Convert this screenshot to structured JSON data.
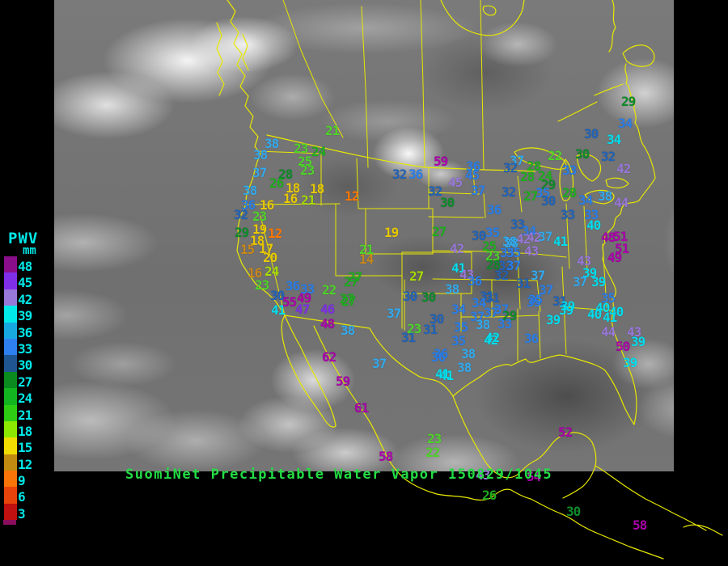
{
  "caption": {
    "text": "SuomiNet Precipitable Water Vapor 150829/1045",
    "color": "#22DD44"
  },
  "colors": {
    "background": "#000000",
    "outline": "#E8E800",
    "legend_label": "#00E8E8"
  },
  "legend": {
    "title": "PWV",
    "unit": "mm",
    "entries": [
      {
        "label": "48",
        "color": "#8A0D8A"
      },
      {
        "label": "45",
        "color": "#7F2FE8"
      },
      {
        "label": "42",
        "color": "#9878D8"
      },
      {
        "label": "39",
        "color": "#00E8E8"
      },
      {
        "label": "36",
        "color": "#18A8E0"
      },
      {
        "label": "33",
        "color": "#2E7FF0"
      },
      {
        "label": "30",
        "color": "#1F5590"
      },
      {
        "label": "27",
        "color": "#0A8A1F"
      },
      {
        "label": "24",
        "color": "#12B41F"
      },
      {
        "label": "21",
        "color": "#2ECC12"
      },
      {
        "label": "18",
        "color": "#8CE800"
      },
      {
        "label": "15",
        "color": "#F0DC00"
      },
      {
        "label": "12",
        "color": "#C08A10"
      },
      {
        "label": "9",
        "color": "#F87408"
      },
      {
        "label": "6",
        "color": "#E8430A"
      },
      {
        "label": "3",
        "color": "#C01010"
      }
    ]
  },
  "palette": {
    "p48": "#AA00AA",
    "v45": "#7F2FE8",
    "v42": "#9878D8",
    "c39": "#00DDEE",
    "b36": "#33AAEE",
    "b33": "#2B7FE8",
    "b30": "#2163B8",
    "g27": "#0E8A2A",
    "g24": "#1FAE1F",
    "g21": "#4FD42A",
    "y18": "#A8DC00",
    "y15": "#E8C800",
    "o12": "#C8881A",
    "o9": "#FF7700"
  },
  "stations": [
    [
      21,
      404,
      157,
      "g21"
    ],
    [
      38,
      329,
      173,
      "b36"
    ],
    [
      23,
      365,
      179,
      "g21"
    ],
    [
      24,
      387,
      183,
      "g24"
    ],
    [
      38,
      315,
      187,
      "b36"
    ],
    [
      25,
      370,
      195,
      "g21"
    ],
    [
      23,
      373,
      206,
      "g21"
    ],
    [
      37,
      314,
      209,
      "b36"
    ],
    [
      28,
      346,
      211,
      "g27"
    ],
    [
      26,
      335,
      222,
      "g24"
    ],
    [
      18,
      355,
      228,
      "y15"
    ],
    [
      18,
      385,
      229,
      "y15"
    ],
    [
      38,
      302,
      231,
      "b36"
    ],
    [
      16,
      352,
      241,
      "y15"
    ],
    [
      21,
      374,
      243,
      "y18"
    ],
    [
      12,
      428,
      238,
      "o9"
    ],
    [
      36,
      300,
      249,
      "b33"
    ],
    [
      16,
      323,
      249,
      "y15"
    ],
    [
      32,
      291,
      261,
      "b30"
    ],
    [
      23,
      314,
      263,
      "g21"
    ],
    [
      29,
      292,
      283,
      "g27"
    ],
    [
      19,
      314,
      279,
      "y15"
    ],
    [
      12,
      333,
      284,
      "o9"
    ],
    [
      18,
      311,
      293,
      "y15"
    ],
    [
      17,
      322,
      303,
      "y15"
    ],
    [
      15,
      299,
      304,
      "o12"
    ],
    [
      20,
      327,
      314,
      "y15"
    ],
    [
      16,
      308,
      333,
      "o12"
    ],
    [
      24,
      329,
      331,
      "y18"
    ],
    [
      23,
      317,
      348,
      "g21"
    ],
    [
      36,
      355,
      349,
      "b33"
    ],
    [
      33,
      373,
      353,
      "b33"
    ],
    [
      22,
      400,
      354,
      "g21"
    ],
    [
      27,
      427,
      344,
      "g24"
    ],
    [
      21,
      446,
      304,
      "g21"
    ],
    [
      14,
      446,
      316,
      "o12"
    ],
    [
      30,
      336,
      361,
      "b30"
    ],
    [
      55,
      351,
      369,
      "p48"
    ],
    [
      49,
      369,
      364,
      "p48"
    ],
    [
      41,
      337,
      379,
      "c39"
    ],
    [
      47,
      367,
      378,
      "v45"
    ],
    [
      46,
      398,
      378,
      "v45"
    ],
    [
      27,
      424,
      368,
      "g24"
    ],
    [
      48,
      398,
      396,
      "p48"
    ],
    [
      38,
      423,
      404,
      "b36"
    ],
    [
      59,
      538,
      195,
      "p48"
    ],
    [
      32,
      487,
      211,
      "b30"
    ],
    [
      36,
      507,
      211,
      "b33"
    ],
    [
      36,
      578,
      201,
      "b33"
    ],
    [
      45,
      556,
      221,
      "v42"
    ],
    [
      45,
      577,
      212,
      "b33"
    ],
    [
      32,
      531,
      232,
      "b30"
    ],
    [
      37,
      584,
      231,
      "b33"
    ],
    [
      30,
      546,
      246,
      "g27"
    ],
    [
      36,
      604,
      255,
      "b33"
    ],
    [
      19,
      477,
      283,
      "y15"
    ],
    [
      27,
      536,
      282,
      "g24"
    ],
    [
      42,
      558,
      303,
      "v42"
    ],
    [
      30,
      585,
      287,
      "b30"
    ],
    [
      35,
      602,
      283,
      "b33"
    ],
    [
      25,
      598,
      300,
      "g24"
    ],
    [
      23,
      602,
      312,
      "g21"
    ],
    [
      28,
      603,
      323,
      "g27"
    ],
    [
      41,
      560,
      327,
      "c39"
    ],
    [
      43,
      570,
      335,
      "v42"
    ],
    [
      36,
      580,
      343,
      "b33"
    ],
    [
      27,
      508,
      337,
      "y18"
    ],
    [
      38,
      552,
      353,
      "b36"
    ],
    [
      30,
      500,
      362,
      "b30"
    ],
    [
      30,
      523,
      363,
      "g27"
    ],
    [
      31,
      595,
      362,
      "b30"
    ],
    [
      27,
      432,
      338,
      "g24"
    ],
    [
      27,
      422,
      365,
      "g24"
    ],
    [
      37,
      480,
      383,
      "b36"
    ],
    [
      23,
      505,
      402,
      "g21"
    ],
    [
      31,
      525,
      403,
      "b30"
    ],
    [
      31,
      498,
      413,
      "b30"
    ],
    [
      30,
      533,
      390,
      "b30"
    ],
    [
      34,
      560,
      378,
      "b33"
    ],
    [
      34,
      585,
      370,
      "b33"
    ],
    [
      35,
      563,
      400,
      "b33"
    ],
    [
      37,
      583,
      387,
      "b33"
    ],
    [
      38,
      590,
      397,
      "b36"
    ],
    [
      37,
      600,
      382,
      "b33"
    ],
    [
      35,
      560,
      417,
      "b33"
    ],
    [
      42,
      602,
      413,
      "c39"
    ],
    [
      36,
      538,
      433,
      "b33"
    ],
    [
      38,
      572,
      433,
      "b36"
    ],
    [
      38,
      567,
      450,
      "b36"
    ],
    [
      37,
      462,
      445,
      "b36"
    ],
    [
      41,
      545,
      460,
      "c39"
    ],
    [
      62,
      400,
      437,
      "p48"
    ],
    [
      59,
      417,
      467,
      "p48"
    ],
    [
      61,
      440,
      500,
      "p48"
    ],
    [
      58,
      470,
      560,
      "p48"
    ],
    [
      36,
      535,
      437,
      "b33"
    ],
    [
      41,
      540,
      458,
      "c39"
    ],
    [
      23,
      530,
      538,
      "g21"
    ],
    [
      22,
      528,
      555,
      "g21"
    ],
    [
      52,
      692,
      530,
      "p48"
    ],
    [
      54,
      653,
      585,
      "p48"
    ],
    [
      43,
      590,
      583,
      "v42"
    ],
    [
      26,
      598,
      608,
      "g24"
    ],
    [
      30,
      702,
      628,
      "g27"
    ],
    [
      58,
      784,
      645,
      "p48"
    ],
    [
      29,
      770,
      121,
      "g27"
    ],
    [
      34,
      766,
      148,
      "b33"
    ],
    [
      30,
      724,
      161,
      "b30"
    ],
    [
      34,
      752,
      168,
      "c39"
    ],
    [
      22,
      679,
      188,
      "g21"
    ],
    [
      30,
      713,
      186,
      "g27"
    ],
    [
      32,
      745,
      189,
      "b30"
    ],
    [
      37,
      632,
      194,
      "b36"
    ],
    [
      32,
      624,
      203,
      "b30"
    ],
    [
      28,
      653,
      201,
      "g24"
    ],
    [
      28,
      645,
      214,
      "g24"
    ],
    [
      24,
      667,
      213,
      "g24"
    ],
    [
      33,
      697,
      206,
      "b33"
    ],
    [
      42,
      764,
      204,
      "v42"
    ],
    [
      29,
      671,
      224,
      "g27"
    ],
    [
      32,
      622,
      233,
      "b30"
    ],
    [
      27,
      649,
      238,
      "g24"
    ],
    [
      35,
      664,
      234,
      "b33"
    ],
    [
      28,
      697,
      234,
      "g24"
    ],
    [
      30,
      671,
      244,
      "b30"
    ],
    [
      34,
      717,
      243,
      "b33"
    ],
    [
      38,
      741,
      238,
      "b36"
    ],
    [
      44,
      761,
      246,
      "v42"
    ],
    [
      33,
      695,
      261,
      "b30"
    ],
    [
      33,
      724,
      261,
      "b33"
    ],
    [
      40,
      727,
      274,
      "c39"
    ],
    [
      33,
      633,
      273,
      "b30"
    ],
    [
      34,
      647,
      281,
      "b33"
    ],
    [
      42,
      653,
      289,
      "v42"
    ],
    [
      42,
      640,
      291,
      "v42"
    ],
    [
      37,
      667,
      288,
      "b36"
    ],
    [
      41,
      686,
      294,
      "c39"
    ],
    [
      38,
      625,
      296,
      "b36"
    ],
    [
      43,
      650,
      306,
      "v42"
    ],
    [
      48,
      745,
      289,
      "p48"
    ],
    [
      51,
      760,
      288,
      "p48"
    ],
    [
      51,
      762,
      303,
      "p48"
    ],
    [
      49,
      753,
      314,
      "p48"
    ],
    [
      43,
      715,
      318,
      "v42"
    ],
    [
      35,
      620,
      308,
      "b33"
    ],
    [
      32,
      618,
      324,
      "b30"
    ],
    [
      35,
      628,
      308,
      "b33"
    ],
    [
      37,
      628,
      324,
      "b33"
    ],
    [
      32,
      613,
      336,
      "b30"
    ],
    [
      37,
      658,
      336,
      "b36"
    ],
    [
      39,
      722,
      333,
      "c39"
    ],
    [
      31,
      640,
      346,
      "b30"
    ],
    [
      37,
      710,
      344,
      "b36"
    ],
    [
      39,
      733,
      344,
      "c39"
    ],
    [
      37,
      668,
      354,
      "b33"
    ],
    [
      35,
      655,
      366,
      "b33"
    ],
    [
      31,
      685,
      368,
      "b30"
    ],
    [
      35,
      745,
      364,
      "b33"
    ],
    [
      39,
      695,
      374,
      "c39"
    ],
    [
      40,
      738,
      376,
      "c39"
    ],
    [
      31,
      602,
      364,
      "b30"
    ],
    [
      37,
      613,
      378,
      "b33"
    ],
    [
      38,
      623,
      294,
      "b36"
    ],
    [
      29,
      623,
      386,
      "g27"
    ],
    [
      35,
      653,
      369,
      "b33"
    ],
    [
      33,
      617,
      396,
      "b33"
    ],
    [
      39,
      693,
      379,
      "c39"
    ],
    [
      39,
      677,
      391,
      "c39"
    ],
    [
      40,
      728,
      384,
      "c39"
    ],
    [
      40,
      755,
      381,
      "c39"
    ],
    [
      41,
      747,
      388,
      "c39"
    ],
    [
      42,
      600,
      416,
      "c39"
    ],
    [
      36,
      650,
      414,
      "b33"
    ],
    [
      44,
      745,
      406,
      "v42"
    ],
    [
      43,
      777,
      406,
      "v42"
    ],
    [
      50,
      763,
      424,
      "p48"
    ],
    [
      39,
      782,
      418,
      "c39"
    ],
    [
      39,
      772,
      444,
      "c39"
    ]
  ]
}
